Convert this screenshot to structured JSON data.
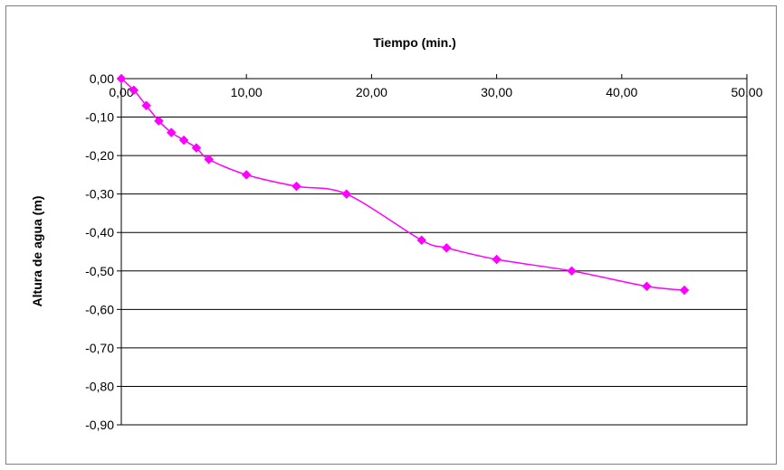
{
  "chart_data": {
    "type": "line",
    "title": "Tiempo (min.)",
    "xlabel": "",
    "ylabel": "Altura de agua (m)",
    "xlim": [
      0,
      50
    ],
    "ylim": [
      -0.9,
      0
    ],
    "x_ticks": [
      "0,00",
      "10,00",
      "20,00",
      "30,00",
      "40,00",
      "50,00"
    ],
    "y_ticks": [
      "0,00",
      "-0,10",
      "-0,20",
      "-0,30",
      "-0,40",
      "-0,50",
      "-0,60",
      "-0,70",
      "-0,80",
      "-0,90"
    ],
    "x_axis_position": "top",
    "grid": "horizontal",
    "marker": "diamond",
    "series_color": "#ff00ff",
    "series": [
      {
        "x": [
          0,
          1,
          2,
          3,
          4,
          5,
          6,
          7,
          10,
          14,
          18,
          24,
          26,
          30,
          36,
          42,
          45
        ],
        "y": [
          0.0,
          -0.03,
          -0.07,
          -0.11,
          -0.14,
          -0.16,
          -0.18,
          -0.21,
          -0.25,
          -0.28,
          -0.3,
          -0.42,
          -0.44,
          -0.47,
          -0.5,
          -0.54,
          -0.55
        ]
      }
    ]
  }
}
